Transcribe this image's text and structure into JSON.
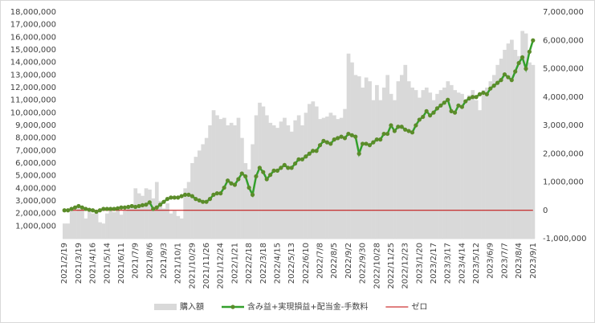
{
  "chart_data": {
    "type": "combo",
    "categories": [
      "2021/2/19",
      null,
      null,
      null,
      "2021/3/19",
      null,
      null,
      null,
      "2021/4/16",
      null,
      null,
      null,
      "2021/5/14",
      null,
      null,
      null,
      "2021/6/11",
      null,
      null,
      null,
      "2021/7/9",
      null,
      null,
      null,
      "2021/8/6",
      null,
      null,
      null,
      "2021/9/3",
      null,
      null,
      null,
      "2021/10/1",
      null,
      null,
      null,
      "2021/10/29",
      null,
      null,
      null,
      "2021/11/26",
      null,
      null,
      null,
      "2021/12/24",
      null,
      null,
      null,
      "2022/1/21",
      null,
      null,
      null,
      "2022/2/18",
      null,
      null,
      null,
      "2022/3/18",
      null,
      null,
      null,
      "2022/4/15",
      null,
      null,
      null,
      "2022/5/13",
      null,
      null,
      null,
      "2022/6/10",
      null,
      null,
      null,
      "2022/7/8",
      null,
      null,
      null,
      "2022/8/5",
      null,
      null,
      null,
      "2022/9/2",
      null,
      null,
      null,
      "2022/9/30",
      null,
      null,
      null,
      "2022/10/28",
      null,
      null,
      null,
      "2022/11/25",
      null,
      null,
      null,
      "2022/12/23",
      null,
      null,
      null,
      "2023/1/20",
      null,
      null,
      null,
      "2023/2/17",
      null,
      null,
      null,
      "2023/3/17",
      null,
      null,
      null,
      "2023/4/14",
      null,
      null,
      null,
      "2023/5/12",
      null,
      null,
      null,
      "2023/6/9",
      null,
      null,
      null,
      "2023/7/7",
      null,
      null,
      null,
      "2023/8/4",
      null,
      null,
      null,
      "2023/9/1"
    ],
    "series": [
      {
        "name": "購入額",
        "type": "bar",
        "axis": "y",
        "color": "#d9d9d9",
        "values": [
          1200000,
          1200000,
          2300000,
          2200000,
          2500000,
          2300000,
          1600000,
          2400000,
          2000000,
          2200000,
          1300000,
          1200000,
          2000000,
          2200000,
          2100000,
          2300000,
          1900000,
          2200000,
          2500000,
          2600000,
          4000000,
          3600000,
          3400000,
          4000000,
          3900000,
          3200000,
          4500000,
          3000000,
          2400000,
          2800000,
          2000000,
          2200000,
          1800000,
          1600000,
          4000000,
          4500000,
          6000000,
          6500000,
          7000000,
          7500000,
          8000000,
          9000000,
          10200000,
          9800000,
          9500000,
          9600000,
          9000000,
          9200000,
          9000000,
          9600000,
          8000000,
          6000000,
          5500000,
          7500000,
          9800000,
          10800000,
          10500000,
          9800000,
          9200000,
          9000000,
          8800000,
          9300000,
          9600000,
          9000000,
          8500000,
          9400000,
          9800000,
          9000000,
          10000000,
          10700000,
          10900000,
          10500000,
          9500000,
          9600000,
          9700000,
          10000000,
          9800000,
          9500000,
          9600000,
          10300000,
          14700000,
          14000000,
          13000000,
          12900000,
          12000000,
          12800000,
          12500000,
          11000000,
          12200000,
          11000000,
          12000000,
          13000000,
          11500000,
          11000000,
          12500000,
          13000000,
          13800000,
          12500000,
          12000000,
          11800000,
          11200000,
          11800000,
          12000000,
          11600000,
          11000000,
          11500000,
          11800000,
          12000000,
          12500000,
          12200000,
          11800000,
          11600000,
          11500000,
          11000000,
          11400000,
          11800000,
          11000000,
          10200000,
          11800000,
          12000000,
          12500000,
          13000000,
          13800000,
          14300000,
          15000000,
          15500000,
          15800000,
          15000000,
          14500000,
          16500000,
          16300000,
          14000000,
          13800000
        ]
      },
      {
        "name": "含み益+実現損益+配当金-手数料",
        "type": "line",
        "axis": "y2",
        "color": "#33a02c",
        "marker_color": "#5b8c2a",
        "values": [
          0,
          0,
          50000,
          100000,
          150000,
          100000,
          50000,
          20000,
          0,
          -50000,
          0,
          50000,
          50000,
          50000,
          50000,
          70000,
          100000,
          100000,
          120000,
          150000,
          120000,
          150000,
          180000,
          200000,
          280000,
          50000,
          100000,
          200000,
          300000,
          400000,
          450000,
          450000,
          450000,
          500000,
          550000,
          550000,
          500000,
          400000,
          350000,
          300000,
          300000,
          400000,
          550000,
          600000,
          600000,
          800000,
          1050000,
          950000,
          900000,
          1100000,
          1300000,
          1200000,
          800000,
          550000,
          1200000,
          1500000,
          1350000,
          1100000,
          1250000,
          1400000,
          1400000,
          1500000,
          1600000,
          1500000,
          1500000,
          1650000,
          1800000,
          1800000,
          1900000,
          2000000,
          2100000,
          2100000,
          2300000,
          2450000,
          2400000,
          2350000,
          2500000,
          2550000,
          2600000,
          2550000,
          2700000,
          2650000,
          2600000,
          2000000,
          2350000,
          2350000,
          2300000,
          2400000,
          2500000,
          2500000,
          2700000,
          2700000,
          3000000,
          2800000,
          2950000,
          2950000,
          2850000,
          2800000,
          2750000,
          3000000,
          3200000,
          3300000,
          3500000,
          3350000,
          3450000,
          3600000,
          3700000,
          3800000,
          3900000,
          3500000,
          3450000,
          3700000,
          3650000,
          3850000,
          3950000,
          4000000,
          4000000,
          4100000,
          4150000,
          4100000,
          4300000,
          4400000,
          4500000,
          4600000,
          4800000,
          4700000,
          4600000,
          4900000,
          5200000,
          5400000,
          5000000,
          5600000,
          6000000
        ]
      },
      {
        "name": "ゼロ",
        "type": "line",
        "axis": "y2",
        "color": "#c00000",
        "values": [
          0,
          0,
          0,
          0,
          0,
          0,
          0,
          0,
          0,
          0,
          0,
          0,
          0,
          0,
          0,
          0,
          0,
          0,
          0,
          0,
          0,
          0,
          0,
          0,
          0,
          0,
          0,
          0,
          0,
          0,
          0,
          0,
          0,
          0,
          0,
          0,
          0,
          0,
          0,
          0,
          0,
          0,
          0,
          0,
          0,
          0,
          0,
          0,
          0,
          0,
          0,
          0,
          0,
          0,
          0,
          0,
          0,
          0,
          0,
          0,
          0,
          0,
          0,
          0,
          0,
          0,
          0,
          0,
          0,
          0,
          0,
          0,
          0,
          0,
          0,
          0,
          0,
          0,
          0,
          0,
          0,
          0,
          0,
          0,
          0,
          0,
          0,
          0,
          0,
          0,
          0,
          0,
          0,
          0,
          0,
          0,
          0,
          0,
          0,
          0,
          0,
          0,
          0,
          0,
          0,
          0,
          0,
          0,
          0,
          0,
          0,
          0,
          0,
          0,
          0,
          0,
          0,
          0,
          0,
          0,
          0,
          0,
          0,
          0,
          0,
          0,
          0,
          0,
          0,
          0,
          0,
          0,
          0
        ]
      }
    ],
    "ylim": [
      0,
      18000000
    ],
    "yticks": [
      {
        "value": 1000000,
        "label": "1,000,000"
      },
      {
        "value": 2000000,
        "label": "2,000,000"
      },
      {
        "value": 3000000,
        "label": "3,000,000"
      },
      {
        "value": 4000000,
        "label": "4,000,000"
      },
      {
        "value": 5000000,
        "label": "5,000,000"
      },
      {
        "value": 6000000,
        "label": "6,000,000"
      },
      {
        "value": 7000000,
        "label": "7,000,000"
      },
      {
        "value": 8000000,
        "label": "8,000,000"
      },
      {
        "value": 9000000,
        "label": "9,000,000"
      },
      {
        "value": 10000000,
        "label": "10,000,000"
      },
      {
        "value": 11000000,
        "label": "11,000,000"
      },
      {
        "value": 12000000,
        "label": "12,000,000"
      },
      {
        "value": 13000000,
        "label": "13,000,000"
      },
      {
        "value": 14000000,
        "label": "14,000,000"
      },
      {
        "value": 15000000,
        "label": "15,000,000"
      },
      {
        "value": 16000000,
        "label": "16,000,000"
      },
      {
        "value": 17000000,
        "label": "17,000,000"
      },
      {
        "value": 18000000,
        "label": "18,000,000"
      }
    ],
    "y2lim": [
      -1000000,
      7000000
    ],
    "y2ticks": [
      {
        "value": -1000000,
        "label": "-1,000,000"
      },
      0,
      {
        "value": 1000000,
        "label": "1,000,000"
      },
      {
        "value": 2000000,
        "label": "2,000,000"
      },
      {
        "value": 3000000,
        "label": "3,000,000"
      },
      {
        "value": 4000000,
        "label": "4,000,000"
      },
      {
        "value": 5000000,
        "label": "5,000,000"
      },
      {
        "value": 6000000,
        "label": "6,000,000"
      },
      {
        "value": 7000000,
        "label": "7,000,000"
      }
    ],
    "legend": "bottom"
  }
}
